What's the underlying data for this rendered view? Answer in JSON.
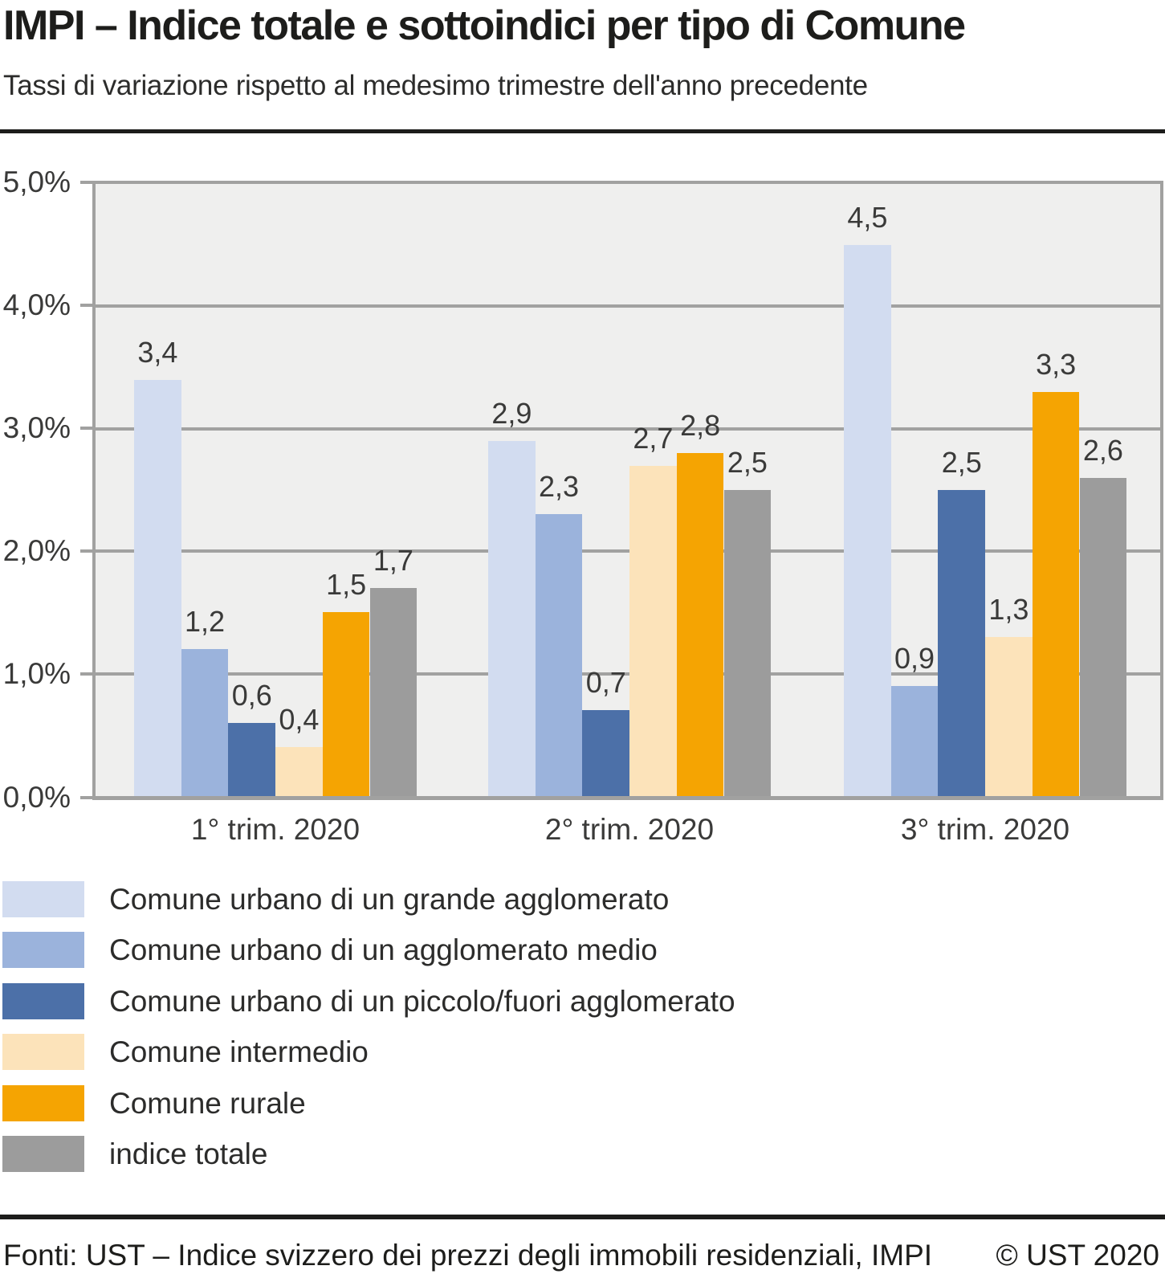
{
  "header": {
    "title": "IMPI – Indice totale e sottoindici per tipo di Comune",
    "subtitle": "Tassi di variazione rispetto al medesimo trimestre dell'anno precedente"
  },
  "chart_data": {
    "type": "bar",
    "title": "IMPI – Indice totale e sottoindici per tipo di Comune",
    "subtitle": "Tassi di variazione rispetto al medesimo trimestre dell'anno precedente",
    "categories": [
      "1° trim. 2020",
      "2° trim. 2020",
      "3° trim. 2020"
    ],
    "series": [
      {
        "name": "Comune urbano di un grande agglomerato",
        "color": "#d2dcf0",
        "values": [
          3.4,
          2.9,
          4.5
        ]
      },
      {
        "name": "Comune urbano di un agglomerato medio",
        "color": "#9bb3dc",
        "values": [
          1.2,
          2.3,
          0.9
        ]
      },
      {
        "name": "Comune urbano di un piccolo/fuori agglomerato",
        "color": "#4c70a8",
        "values": [
          0.6,
          0.7,
          2.5
        ]
      },
      {
        "name": "Comune intermedio",
        "color": "#fce3ba",
        "values": [
          0.4,
          2.7,
          1.3
        ]
      },
      {
        "name": "Comune rurale",
        "color": "#f5a402",
        "values": [
          1.5,
          2.8,
          3.3
        ]
      },
      {
        "name": "indice totale",
        "color": "#9c9c9c",
        "values": [
          1.7,
          2.5,
          2.6
        ]
      }
    ],
    "ylabel": "",
    "xlabel": "",
    "ylim": [
      0,
      5
    ],
    "y_ticks": [
      "0,0%",
      "1,0%",
      "2,0%",
      "3,0%",
      "4,0%",
      "5,0%"
    ],
    "decimal_separator": ",",
    "grid": true,
    "legend_position": "bottom-left",
    "plot_background": "#efefee",
    "gridline_color": "#a1a1a0"
  },
  "footer": {
    "source": "Fonti: UST – Indice svizzero dei prezzi degli immobili residenziali, IMPI",
    "copyright": "© UST 2020"
  }
}
